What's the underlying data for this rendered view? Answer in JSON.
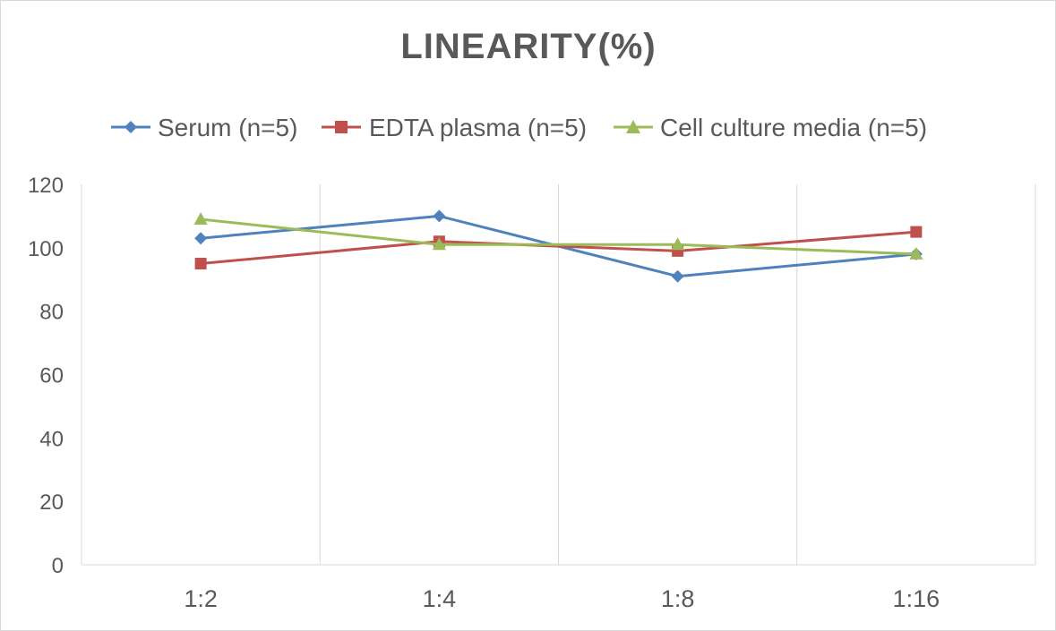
{
  "chart_data": {
    "type": "line",
    "title": "LINEARITY(%)",
    "categories": [
      "1:2",
      "1:4",
      "1:8",
      "1:16"
    ],
    "ylim": [
      0,
      120
    ],
    "yticks": [
      0,
      20,
      40,
      60,
      80,
      100,
      120
    ],
    "grid": "vertical",
    "legend": "top",
    "series": [
      {
        "name": "Serum (n=5)",
        "color": "#4f81bd",
        "marker": "diamond",
        "values": [
          103,
          110,
          91,
          98
        ]
      },
      {
        "name": "EDTA plasma (n=5)",
        "color": "#c0504d",
        "marker": "square",
        "values": [
          95,
          102,
          99,
          105
        ]
      },
      {
        "name": "Cell culture media (n=5)",
        "color": "#9bbb59",
        "marker": "triangle",
        "values": [
          109,
          101,
          101,
          98
        ]
      }
    ]
  }
}
